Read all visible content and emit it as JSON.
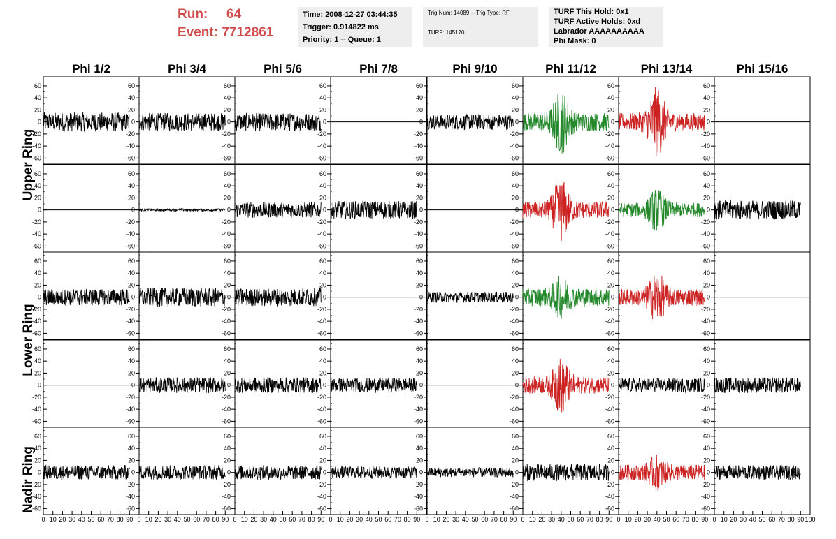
{
  "header": {
    "run_label": "Run:",
    "run_value": "64",
    "event_label": "Event:",
    "event_value": "7712861",
    "time": "Time: 2008-12-27 03:44:35",
    "trigger": "Trigger: 0.914822 ms",
    "priority": "Priority: 1 -- Queue: 1",
    "trig_num": "Trig Num: 14089 -- Trig Type: RF",
    "turf": "TURF: 145170",
    "turf_this_hold": "TURF This Hold: 0x1",
    "turf_active_holds": "TURF Active Holds: 0xd",
    "labrador": "Labrador AAAAAAAAAA",
    "phi_mask": "Phi Mask: 0"
  },
  "chart_data": {
    "type": "line",
    "columns": [
      "Phi 1/2",
      "Phi 3/4",
      "Phi 5/6",
      "Phi 7/8",
      "Phi 9/10",
      "Phi 11/12",
      "Phi 13/14",
      "Phi 15/16"
    ],
    "rows": [
      "Upper Ring",
      "Lower Ring",
      "Nadir Ring"
    ],
    "xlim": [
      0,
      100
    ],
    "ylim": [
      -70,
      75
    ],
    "x_ticks": [
      0,
      10,
      20,
      30,
      40,
      50,
      60,
      70,
      80,
      90,
      100
    ],
    "y_ticks": [
      -60,
      -40,
      -20,
      0,
      20,
      40,
      60
    ],
    "colors": {
      "normal": "#000000",
      "triggered_red": "#cc2222",
      "triggered_green": "#22882a"
    },
    "panels": [
      {
        "row": 0,
        "col": 0,
        "color": "black",
        "amp": 16,
        "burst": 0,
        "offset": 0,
        "flat": false
      },
      {
        "row": 0,
        "col": 1,
        "color": "black",
        "amp": 15,
        "burst": 0,
        "offset": 0,
        "flat": false
      },
      {
        "row": 0,
        "col": 2,
        "color": "black",
        "amp": 15,
        "burst": 0,
        "offset": 0,
        "flat": false
      },
      {
        "row": 0,
        "col": 3,
        "color": "black",
        "amp": 0,
        "burst": 0,
        "offset": 0,
        "flat": true
      },
      {
        "row": 0,
        "col": 4,
        "color": "black",
        "amp": 13,
        "burst": 0,
        "offset": 0,
        "flat": false
      },
      {
        "row": 0,
        "col": 5,
        "color": "green",
        "amp": 15,
        "burst": 40,
        "offset": 0,
        "flat": false
      },
      {
        "row": 0,
        "col": 6,
        "color": "red",
        "amp": 15,
        "burst": 45,
        "offset": 0,
        "flat": false
      },
      {
        "row": 0,
        "col": 7,
        "color": "black",
        "amp": 0,
        "burst": 0,
        "offset": 0,
        "flat": true
      },
      {
        "row": 1,
        "col": 0,
        "color": "black",
        "amp": 0,
        "burst": 0,
        "offset": 0,
        "flat": true
      },
      {
        "row": 1,
        "col": 1,
        "color": "black",
        "amp": 2,
        "burst": 0,
        "offset": 0,
        "flat": false
      },
      {
        "row": 1,
        "col": 2,
        "color": "black",
        "amp": 13,
        "burst": 0,
        "offset": 0,
        "flat": false
      },
      {
        "row": 1,
        "col": 3,
        "color": "black",
        "amp": 15,
        "burst": 0,
        "offset": 0,
        "flat": false
      },
      {
        "row": 1,
        "col": 4,
        "color": "black",
        "amp": 0,
        "burst": 0,
        "offset": 0,
        "flat": true
      },
      {
        "row": 1,
        "col": 5,
        "color": "red",
        "amp": 14,
        "burst": 40,
        "offset": 0,
        "flat": false
      },
      {
        "row": 1,
        "col": 6,
        "color": "green",
        "amp": 12,
        "burst": 25,
        "offset": 0,
        "flat": false
      },
      {
        "row": 1,
        "col": 7,
        "color": "black",
        "amp": 16,
        "burst": 0,
        "offset": 0,
        "flat": false
      },
      {
        "row": 2,
        "col": 0,
        "color": "black",
        "amp": 14,
        "burst": 0,
        "offset": 0,
        "flat": false
      },
      {
        "row": 2,
        "col": 1,
        "color": "black",
        "amp": 16,
        "burst": 0,
        "offset": 0,
        "flat": false
      },
      {
        "row": 2,
        "col": 2,
        "color": "black",
        "amp": 15,
        "burst": 0,
        "offset": 0,
        "flat": false
      },
      {
        "row": 2,
        "col": 3,
        "color": "black",
        "amp": 0,
        "burst": 0,
        "offset": 0,
        "flat": true
      },
      {
        "row": 2,
        "col": 4,
        "color": "black",
        "amp": 9,
        "burst": 0,
        "offset": 0,
        "flat": false
      },
      {
        "row": 2,
        "col": 5,
        "color": "green",
        "amp": 15,
        "burst": 22,
        "offset": 0,
        "flat": false
      },
      {
        "row": 2,
        "col": 6,
        "color": "red",
        "amp": 14,
        "burst": 30,
        "offset": 0,
        "flat": false
      },
      {
        "row": 2,
        "col": 7,
        "color": "black",
        "amp": 0,
        "burst": 0,
        "offset": 0,
        "flat": true
      },
      {
        "row": 3,
        "col": 0,
        "color": "black",
        "amp": 0,
        "burst": 0,
        "offset": 0,
        "flat": true
      },
      {
        "row": 3,
        "col": 1,
        "color": "black",
        "amp": 13,
        "burst": 0,
        "offset": 0,
        "flat": false
      },
      {
        "row": 3,
        "col": 2,
        "color": "black",
        "amp": 13,
        "burst": 0,
        "offset": 0,
        "flat": false
      },
      {
        "row": 3,
        "col": 3,
        "color": "black",
        "amp": 12,
        "burst": 0,
        "offset": 0,
        "flat": false
      },
      {
        "row": 3,
        "col": 4,
        "color": "black",
        "amp": 0,
        "burst": 0,
        "offset": 0,
        "flat": true
      },
      {
        "row": 3,
        "col": 5,
        "color": "red",
        "amp": 14,
        "burst": 35,
        "offset": 0,
        "flat": false
      },
      {
        "row": 3,
        "col": 6,
        "color": "black",
        "amp": 12,
        "burst": 0,
        "offset": 0,
        "flat": false
      },
      {
        "row": 3,
        "col": 7,
        "color": "black",
        "amp": 13,
        "burst": 0,
        "offset": 0,
        "flat": false
      },
      {
        "row": 4,
        "col": 0,
        "color": "black",
        "amp": 12,
        "burst": 0,
        "offset": 0,
        "flat": false
      },
      {
        "row": 4,
        "col": 1,
        "color": "black",
        "amp": 12,
        "burst": 0,
        "offset": 0,
        "flat": false
      },
      {
        "row": 4,
        "col": 2,
        "color": "black",
        "amp": 12,
        "burst": 0,
        "offset": 0,
        "flat": false
      },
      {
        "row": 4,
        "col": 3,
        "color": "black",
        "amp": 10,
        "burst": 0,
        "offset": 0,
        "flat": false
      },
      {
        "row": 4,
        "col": 4,
        "color": "black",
        "amp": 8,
        "burst": 0,
        "offset": 0,
        "flat": false
      },
      {
        "row": 4,
        "col": 5,
        "color": "black",
        "amp": 14,
        "burst": 0,
        "offset": 0,
        "flat": false
      },
      {
        "row": 4,
        "col": 6,
        "color": "red",
        "amp": 13,
        "burst": 18,
        "offset": 0,
        "flat": false
      },
      {
        "row": 4,
        "col": 7,
        "color": "black",
        "amp": 12,
        "burst": 0,
        "offset": 0,
        "flat": false
      }
    ]
  }
}
